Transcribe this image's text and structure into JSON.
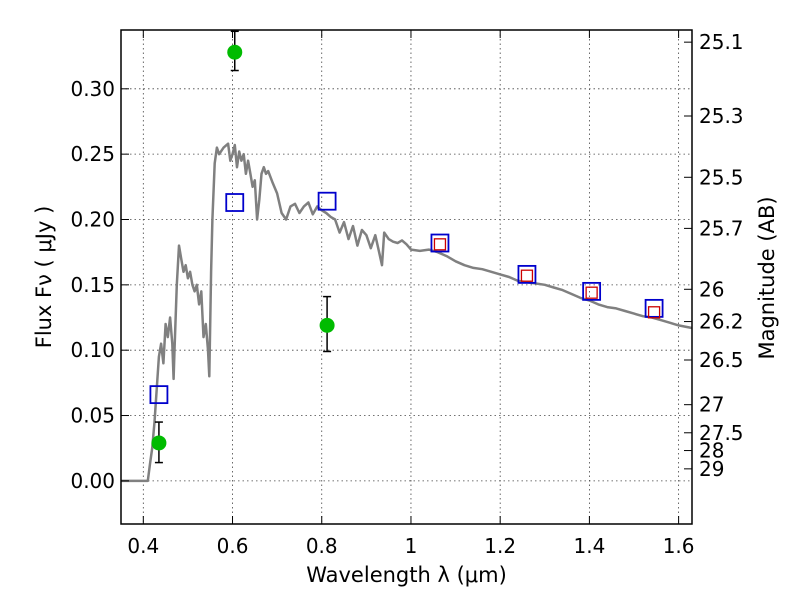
{
  "chart_data": {
    "type": "scatter",
    "xlabel": "Wavelength  λ (μm)",
    "ylabel": "Flux  Fν  ( μJy )",
    "y2label": "Magnitude (AB)",
    "xlim": [
      0.35,
      1.63
    ],
    "ylim": [
      -0.033,
      0.345
    ],
    "grid": true,
    "x_ticks": [
      {
        "value": 0.4,
        "label": "0.4"
      },
      {
        "value": 0.6,
        "label": "0.6"
      },
      {
        "value": 0.8,
        "label": "0.8"
      },
      {
        "value": 1.0,
        "label": "1"
      },
      {
        "value": 1.2,
        "label": "1.2"
      },
      {
        "value": 1.4,
        "label": "1.4"
      },
      {
        "value": 1.6,
        "label": "1.6"
      }
    ],
    "y_ticks": [
      {
        "value": 0.0,
        "label": "0.00"
      },
      {
        "value": 0.05,
        "label": "0.05"
      },
      {
        "value": 0.1,
        "label": "0.10"
      },
      {
        "value": 0.15,
        "label": "0.15"
      },
      {
        "value": 0.2,
        "label": "0.20"
      },
      {
        "value": 0.25,
        "label": "0.25"
      },
      {
        "value": 0.3,
        "label": "0.30"
      }
    ],
    "y2_ticks": [
      {
        "label": "25.1",
        "flux": 0.3357
      },
      {
        "label": "25.3",
        "flux": 0.2792
      },
      {
        "label": "25.5",
        "flux": 0.2323
      },
      {
        "label": "25.7",
        "flux": 0.1932
      },
      {
        "label": "26",
        "flux": 0.1466
      },
      {
        "label": "26.2",
        "flux": 0.1219
      },
      {
        "label": "26.5",
        "flux": 0.0925
      },
      {
        "label": "27",
        "flux": 0.0583
      },
      {
        "label": "27.5",
        "flux": 0.0368
      },
      {
        "label": "28",
        "flux": 0.0232
      },
      {
        "label": "29",
        "flux": 0.0092
      }
    ],
    "series": [
      {
        "kind": "line",
        "color": "#808080",
        "points": [
          [
            0.35,
            0.0
          ],
          [
            0.4,
            0.0
          ],
          [
            0.41,
            0.0
          ],
          [
            0.415,
            0.013
          ],
          [
            0.42,
            0.025
          ],
          [
            0.425,
            0.045
          ],
          [
            0.43,
            0.07
          ],
          [
            0.435,
            0.095
          ],
          [
            0.44,
            0.105
          ],
          [
            0.445,
            0.09
          ],
          [
            0.45,
            0.12
          ],
          [
            0.455,
            0.11
          ],
          [
            0.46,
            0.125
          ],
          [
            0.465,
            0.105
          ],
          [
            0.468,
            0.078
          ],
          [
            0.47,
            0.1
          ],
          [
            0.475,
            0.15
          ],
          [
            0.48,
            0.18
          ],
          [
            0.485,
            0.17
          ],
          [
            0.49,
            0.16
          ],
          [
            0.495,
            0.165
          ],
          [
            0.5,
            0.155
          ],
          [
            0.505,
            0.16
          ],
          [
            0.51,
            0.15
          ],
          [
            0.515,
            0.145
          ],
          [
            0.52,
            0.15
          ],
          [
            0.525,
            0.135
          ],
          [
            0.53,
            0.145
          ],
          [
            0.535,
            0.11
          ],
          [
            0.54,
            0.12
          ],
          [
            0.545,
            0.1
          ],
          [
            0.548,
            0.08
          ],
          [
            0.552,
            0.16
          ],
          [
            0.555,
            0.2
          ],
          [
            0.56,
            0.243
          ],
          [
            0.565,
            0.255
          ],
          [
            0.57,
            0.25
          ],
          [
            0.58,
            0.255
          ],
          [
            0.59,
            0.258
          ],
          [
            0.595,
            0.245
          ],
          [
            0.6,
            0.25
          ],
          [
            0.605,
            0.257
          ],
          [
            0.61,
            0.24
          ],
          [
            0.615,
            0.252
          ],
          [
            0.62,
            0.245
          ],
          [
            0.625,
            0.25
          ],
          [
            0.63,
            0.235
          ],
          [
            0.635,
            0.245
          ],
          [
            0.64,
            0.235
          ],
          [
            0.645,
            0.225
          ],
          [
            0.65,
            0.23
          ],
          [
            0.655,
            0.2
          ],
          [
            0.66,
            0.215
          ],
          [
            0.665,
            0.235
          ],
          [
            0.67,
            0.24
          ],
          [
            0.675,
            0.235
          ],
          [
            0.68,
            0.237
          ],
          [
            0.69,
            0.228
          ],
          [
            0.7,
            0.22
          ],
          [
            0.71,
            0.205
          ],
          [
            0.72,
            0.2
          ],
          [
            0.73,
            0.21
          ],
          [
            0.74,
            0.212
          ],
          [
            0.75,
            0.205
          ],
          [
            0.76,
            0.21
          ],
          [
            0.77,
            0.213
          ],
          [
            0.78,
            0.204
          ],
          [
            0.79,
            0.21
          ],
          [
            0.8,
            0.207
          ],
          [
            0.81,
            0.205
          ],
          [
            0.82,
            0.202
          ],
          [
            0.83,
            0.2
          ],
          [
            0.84,
            0.19
          ],
          [
            0.85,
            0.198
          ],
          [
            0.86,
            0.185
          ],
          [
            0.87,
            0.195
          ],
          [
            0.88,
            0.18
          ],
          [
            0.89,
            0.192
          ],
          [
            0.9,
            0.188
          ],
          [
            0.91,
            0.178
          ],
          [
            0.92,
            0.188
          ],
          [
            0.93,
            0.173
          ],
          [
            0.935,
            0.165
          ],
          [
            0.94,
            0.19
          ],
          [
            0.95,
            0.185
          ],
          [
            0.96,
            0.183
          ],
          [
            0.97,
            0.182
          ],
          [
            0.98,
            0.184
          ],
          [
            0.99,
            0.181
          ],
          [
            1.0,
            0.177
          ],
          [
            1.02,
            0.176
          ],
          [
            1.04,
            0.177
          ],
          [
            1.06,
            0.175
          ],
          [
            1.08,
            0.172
          ],
          [
            1.1,
            0.168
          ],
          [
            1.12,
            0.165
          ],
          [
            1.14,
            0.163
          ],
          [
            1.16,
            0.162
          ],
          [
            1.18,
            0.16
          ],
          [
            1.2,
            0.158
          ],
          [
            1.22,
            0.156
          ],
          [
            1.24,
            0.153
          ],
          [
            1.26,
            0.152
          ],
          [
            1.28,
            0.151
          ],
          [
            1.3,
            0.15
          ],
          [
            1.32,
            0.148
          ],
          [
            1.34,
            0.146
          ],
          [
            1.36,
            0.143
          ],
          [
            1.38,
            0.14
          ],
          [
            1.4,
            0.138
          ],
          [
            1.42,
            0.135
          ],
          [
            1.44,
            0.133
          ],
          [
            1.46,
            0.132
          ],
          [
            1.48,
            0.13
          ],
          [
            1.5,
            0.128
          ],
          [
            1.52,
            0.126
          ],
          [
            1.54,
            0.125
          ],
          [
            1.56,
            0.123
          ],
          [
            1.58,
            0.121
          ],
          [
            1.6,
            0.119
          ],
          [
            1.63,
            0.117
          ]
        ]
      },
      {
        "kind": "open-square",
        "color": "#0000cc",
        "points": [
          [
            0.435,
            0.066
          ],
          [
            0.605,
            0.213
          ],
          [
            0.812,
            0.214
          ],
          [
            1.065,
            0.182
          ],
          [
            1.26,
            0.158
          ],
          [
            1.405,
            0.145
          ],
          [
            1.545,
            0.132
          ]
        ]
      },
      {
        "kind": "open-square-small",
        "color": "#cc0000",
        "points": [
          [
            1.065,
            0.181
          ],
          [
            1.26,
            0.157
          ],
          [
            1.405,
            0.144
          ],
          [
            1.545,
            0.129
          ]
        ]
      },
      {
        "kind": "point-errorbar",
        "color": "#00bb00",
        "points": [
          {
            "x": 0.435,
            "y": 0.029,
            "err_low": 0.015,
            "err_high": 0.016
          },
          {
            "x": 0.605,
            "y": 0.328,
            "err_low": 0.014,
            "err_high": 0.016
          },
          {
            "x": 0.812,
            "y": 0.119,
            "err_low": 0.02,
            "err_high": 0.022
          }
        ]
      }
    ]
  }
}
